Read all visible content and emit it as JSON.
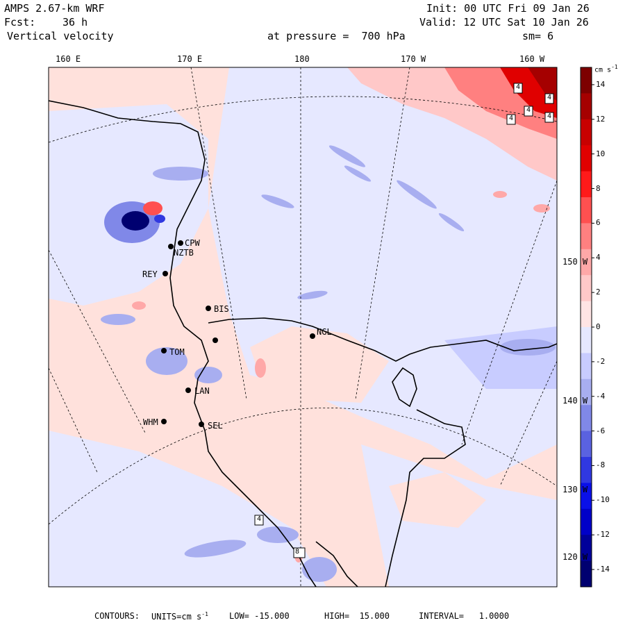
{
  "header": {
    "model": "AMPS 2.67-km WRF",
    "init": "Init: 00 UTC Fri 09 Jan 26",
    "fcst_label": "Fcst:",
    "fcst_value": "36 h",
    "valid": "Valid: 12 UTC Sat 10 Jan 26",
    "field": "Vertical velocity",
    "pressure": "at pressure =  700 hPa",
    "smooth": "sm= 6"
  },
  "longitudes_top": [
    "160 E",
    "170 E",
    "180",
    "170 W",
    "160 W"
  ],
  "longitudes_right": [
    "150 W",
    "140 W",
    "130 W",
    "120 W"
  ],
  "stations": [
    {
      "id": "CPW"
    },
    {
      "id": "NZTB"
    },
    {
      "id": "REY"
    },
    {
      "id": "BIS"
    },
    {
      "id": "NGL"
    },
    {
      "id": "TOM"
    },
    {
      "id": "LAN"
    },
    {
      "id": "WHM"
    },
    {
      "id": "SEL"
    }
  ],
  "contour_labels": [
    "4",
    "4",
    "4",
    "4",
    "8",
    "4",
    "4"
  ],
  "colorbar": {
    "units": "cm s",
    "units_exp": "-1",
    "ticks": [
      "14",
      "12",
      "10",
      "8",
      "6",
      "4",
      "2",
      "0",
      "-2",
      "-4",
      "-6",
      "-8",
      "-10",
      "-12",
      "-14"
    ],
    "colors_top_to_bottom": [
      "#7d0000",
      "#a50000",
      "#c80000",
      "#e00000",
      "#ff1a1a",
      "#ff5050",
      "#ff8080",
      "#ffa8a8",
      "#ffc8c8",
      "#ffe4e4",
      "#e6e8ff",
      "#c8ccff",
      "#a8aef0",
      "#8088e8",
      "#5a62e0",
      "#3038e0",
      "#0a10e8",
      "#0000c8",
      "#00009a",
      "#000070"
    ]
  },
  "footer": {
    "contours": "CONTOURS:",
    "units_label": "UNITS=cm s",
    "units_exp": "-1",
    "low": "LOW= -15.000",
    "high": "HIGH=  15.000",
    "interval": "INTERVAL=   1.0000"
  },
  "colors": {
    "positive_bg": "#ffe1dc",
    "negative_bg": "#e6e8ff",
    "coast": "#000000"
  }
}
